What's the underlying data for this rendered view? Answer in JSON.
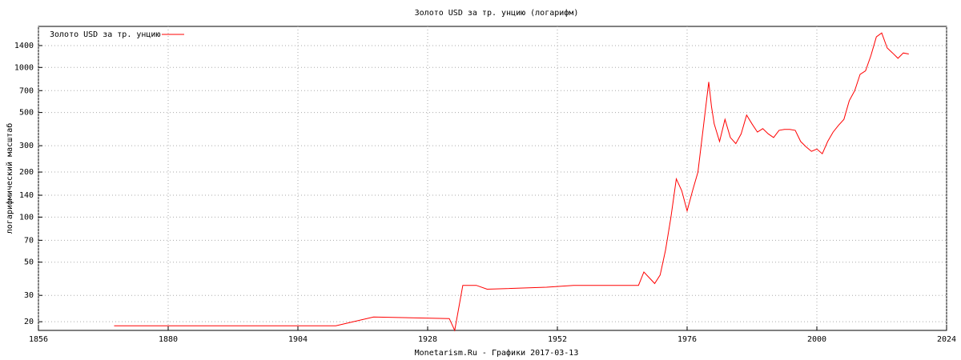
{
  "chart_data": {
    "type": "line",
    "title": "Золото USD за тр. унцию (логарифм)",
    "y_label": "логарифмический масштаб",
    "x_label": "Monetarism.Ru - Графики  2017-03-13",
    "log_y": true,
    "grid": true,
    "legend": "top-left",
    "x": [
      1870,
      1911,
      1918,
      1932,
      1933,
      1934.5,
      1937,
      1939,
      1950,
      1955,
      1967,
      1968,
      1970,
      1971,
      1972,
      1973,
      1974,
      1975,
      1976,
      1977,
      1978,
      1979,
      1980,
      1980.5,
      1981,
      1982,
      1983,
      1984,
      1985,
      1986,
      1987,
      1988,
      1989,
      1990,
      1991,
      1992,
      1993,
      1994,
      1995,
      1996,
      1997,
      1998,
      1999,
      2000,
      2001,
      2002,
      2003,
      2004,
      2005,
      2006,
      2007,
      2008,
      2009,
      2010,
      2011,
      2012,
      2013,
      2014,
      2015,
      2016,
      2017
    ],
    "series": [
      {
        "name": "Золото USD за тр. унцию",
        "color": "#ff0000",
        "values": [
          18.8,
          18.8,
          21.5,
          21,
          17.5,
          35,
          35,
          33,
          34,
          35,
          35,
          43,
          36,
          41,
          60,
          100,
          180,
          150,
          110,
          150,
          200,
          400,
          800,
          550,
          420,
          320,
          450,
          340,
          310,
          360,
          480,
          420,
          370,
          390,
          360,
          340,
          380,
          385,
          385,
          380,
          320,
          295,
          275,
          285,
          265,
          320,
          370,
          410,
          450,
          600,
          700,
          900,
          950,
          1200,
          1600,
          1700,
          1350,
          1250,
          1150,
          1250,
          1230
        ]
      }
    ],
    "xlim": [
      1856,
      2024
    ],
    "xticks": [
      1856,
      1880,
      1904,
      1928,
      1952,
      1976,
      2000,
      2024
    ],
    "ylim": [
      17.5,
      1880
    ],
    "yticks": [
      20,
      30,
      50,
      70,
      100,
      140,
      200,
      300,
      500,
      700,
      1000,
      1400
    ]
  }
}
